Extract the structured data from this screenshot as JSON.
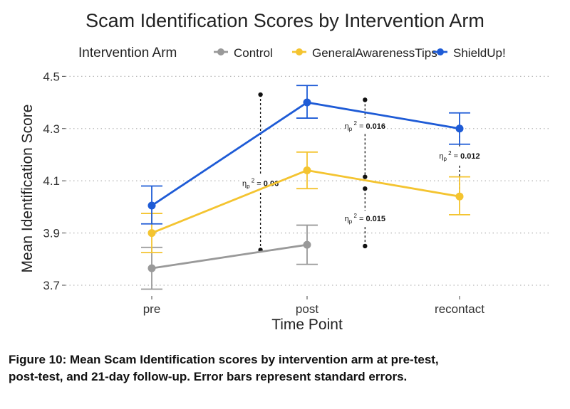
{
  "chart_data": {
    "type": "line",
    "title": "Scam Identification Scores by Intervention Arm",
    "xlabel": "Time Point",
    "ylabel": "Mean Identification Score",
    "categories": [
      "pre",
      "post",
      "recontact"
    ],
    "ylim": [
      3.67,
      4.52
    ],
    "yticks": [
      "3.7",
      "3.9",
      "4.1",
      "4.3",
      "4.5"
    ],
    "grid": true,
    "legend": {
      "title": "Intervention Arm",
      "position": "top"
    },
    "series": [
      {
        "name": "Control",
        "color": "#999999",
        "points": [
          {
            "x": "pre",
            "y": 3.765,
            "lo": 3.685,
            "hi": 3.845
          },
          {
            "x": "post",
            "y": 3.855,
            "lo": 3.78,
            "hi": 3.93
          }
        ]
      },
      {
        "name": "GeneralAwarenessTips",
        "color": "#F4C430",
        "points": [
          {
            "x": "pre",
            "y": 3.9,
            "lo": 3.825,
            "hi": 3.975
          },
          {
            "x": "post",
            "y": 4.14,
            "lo": 4.07,
            "hi": 4.21
          },
          {
            "x": "recontact",
            "y": 4.04,
            "lo": 3.97,
            "hi": 4.115
          }
        ]
      },
      {
        "name": "ShieldUp!",
        "color": "#1E5BD6",
        "points": [
          {
            "x": "pre",
            "y": 4.005,
            "lo": 3.935,
            "hi": 4.08
          },
          {
            "x": "post",
            "y": 4.4,
            "lo": 4.34,
            "hi": 4.465
          },
          {
            "x": "recontact",
            "y": 4.3,
            "lo": 4.24,
            "hi": 4.36
          }
        ]
      }
    ],
    "annotations": [
      {
        "label_prefix": "η",
        "subscript": "p",
        "superscript": "2",
        "value": "0.06",
        "x_cat": 0.7,
        "y_top": 4.43,
        "y_bottom": 3.835,
        "label_y": 4.085
      },
      {
        "label_prefix": "η",
        "subscript": "p",
        "superscript": "2",
        "value": "0.016",
        "x_cat": 1.38,
        "y_top": 4.41,
        "y_bottom": 4.115,
        "label_y": 4.305
      },
      {
        "label_prefix": "η",
        "subscript": "p",
        "superscript": "2",
        "value": "0.015",
        "x_cat": 1.38,
        "y_top": 4.07,
        "y_bottom": 3.85,
        "label_y": 3.95
      },
      {
        "label_prefix": "η",
        "subscript": "p",
        "superscript": "2",
        "value": "0.012",
        "x_cat": 2.2,
        "y_top": 4.305,
        "y_bottom": 4.035,
        "label_y": 4.19
      }
    ]
  },
  "caption": "Figure 10: Mean Scam Identification scores by intervention arm at pre-test, post-test, and 21-day follow-up. Error bars represent standard errors."
}
